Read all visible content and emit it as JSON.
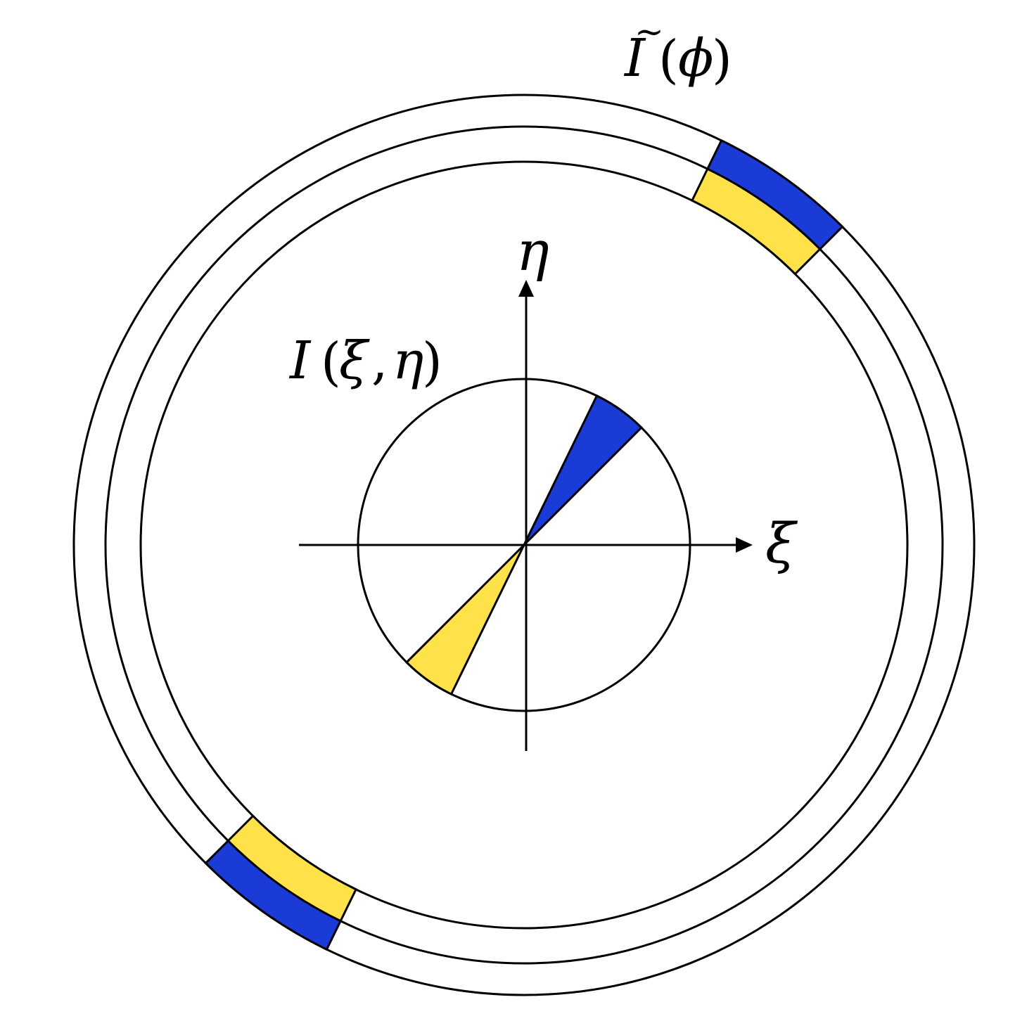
{
  "diagram": {
    "labels": {
      "outer_I": "I",
      "outer_tilde": "~",
      "outer_open": "(",
      "outer_phi": "ϕ",
      "outer_close": ")",
      "inner_I": "I",
      "inner_open": "(",
      "inner_xi": "ξ",
      "inner_comma": ",",
      "inner_eta": "η",
      "inner_close": ")",
      "axis_eta": "η",
      "axis_xi": "ξ"
    },
    "colors": {
      "blue": "#1a3bd6",
      "yellow": "#ffe14a",
      "stroke": "#000000"
    }
  }
}
